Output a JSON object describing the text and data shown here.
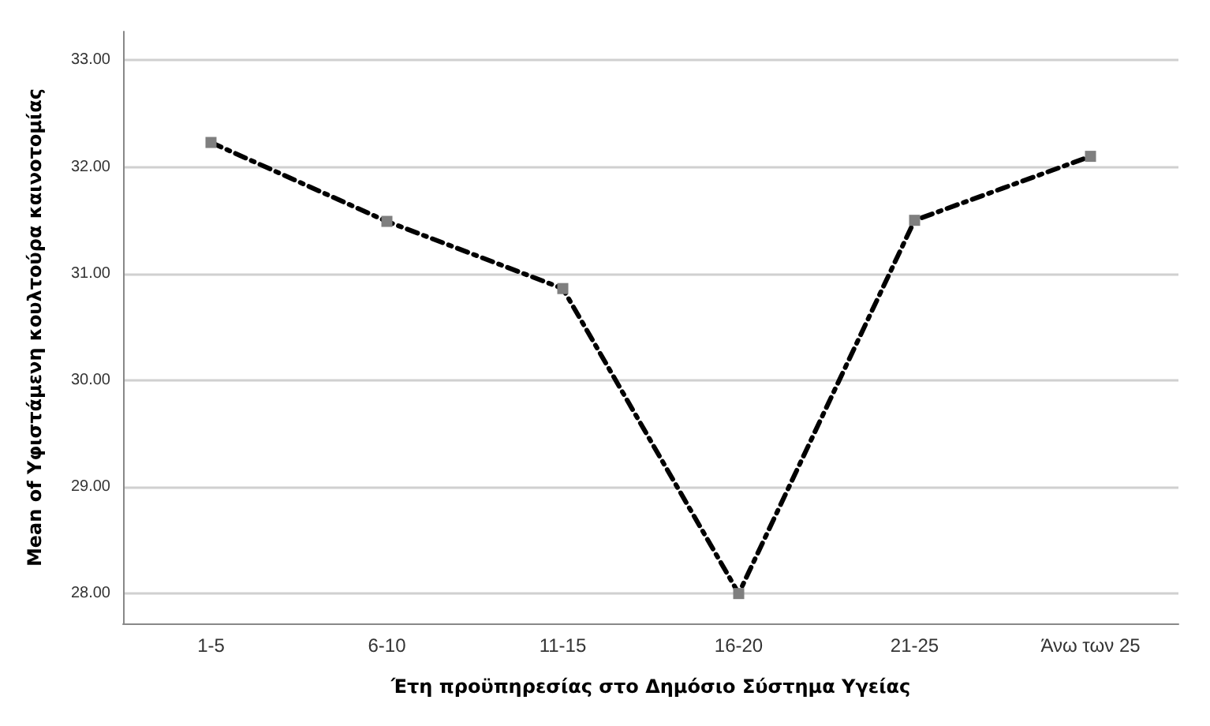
{
  "chart_data": {
    "type": "line",
    "xlabel": "Έτη προϋπηρεσίας στο Δημόσιο Σύστημα Υγείας",
    "ylabel": "Mean of Υφιστάμενη κουλτούρα καινοτομίας",
    "categories": [
      "1-5",
      "6-10",
      "11-15",
      "16-20",
      "21-25",
      "Άνω των 25"
    ],
    "series": [
      {
        "color": "#000000",
        "values": [
          32.23,
          31.49,
          30.86,
          28.0,
          31.5,
          32.1
        ]
      }
    ],
    "ylim": [
      27.72,
      33.27
    ],
    "yticks": [
      {
        "value": 28,
        "label": "28.00"
      },
      {
        "value": 29,
        "label": "29.00"
      },
      {
        "value": 30,
        "label": "30.00"
      },
      {
        "value": 31,
        "label": "31.00"
      },
      {
        "value": 32,
        "label": "32.00"
      },
      {
        "value": 33,
        "label": "33.00"
      }
    ],
    "grid": "y",
    "marker": "square",
    "line_style": "dashed"
  }
}
